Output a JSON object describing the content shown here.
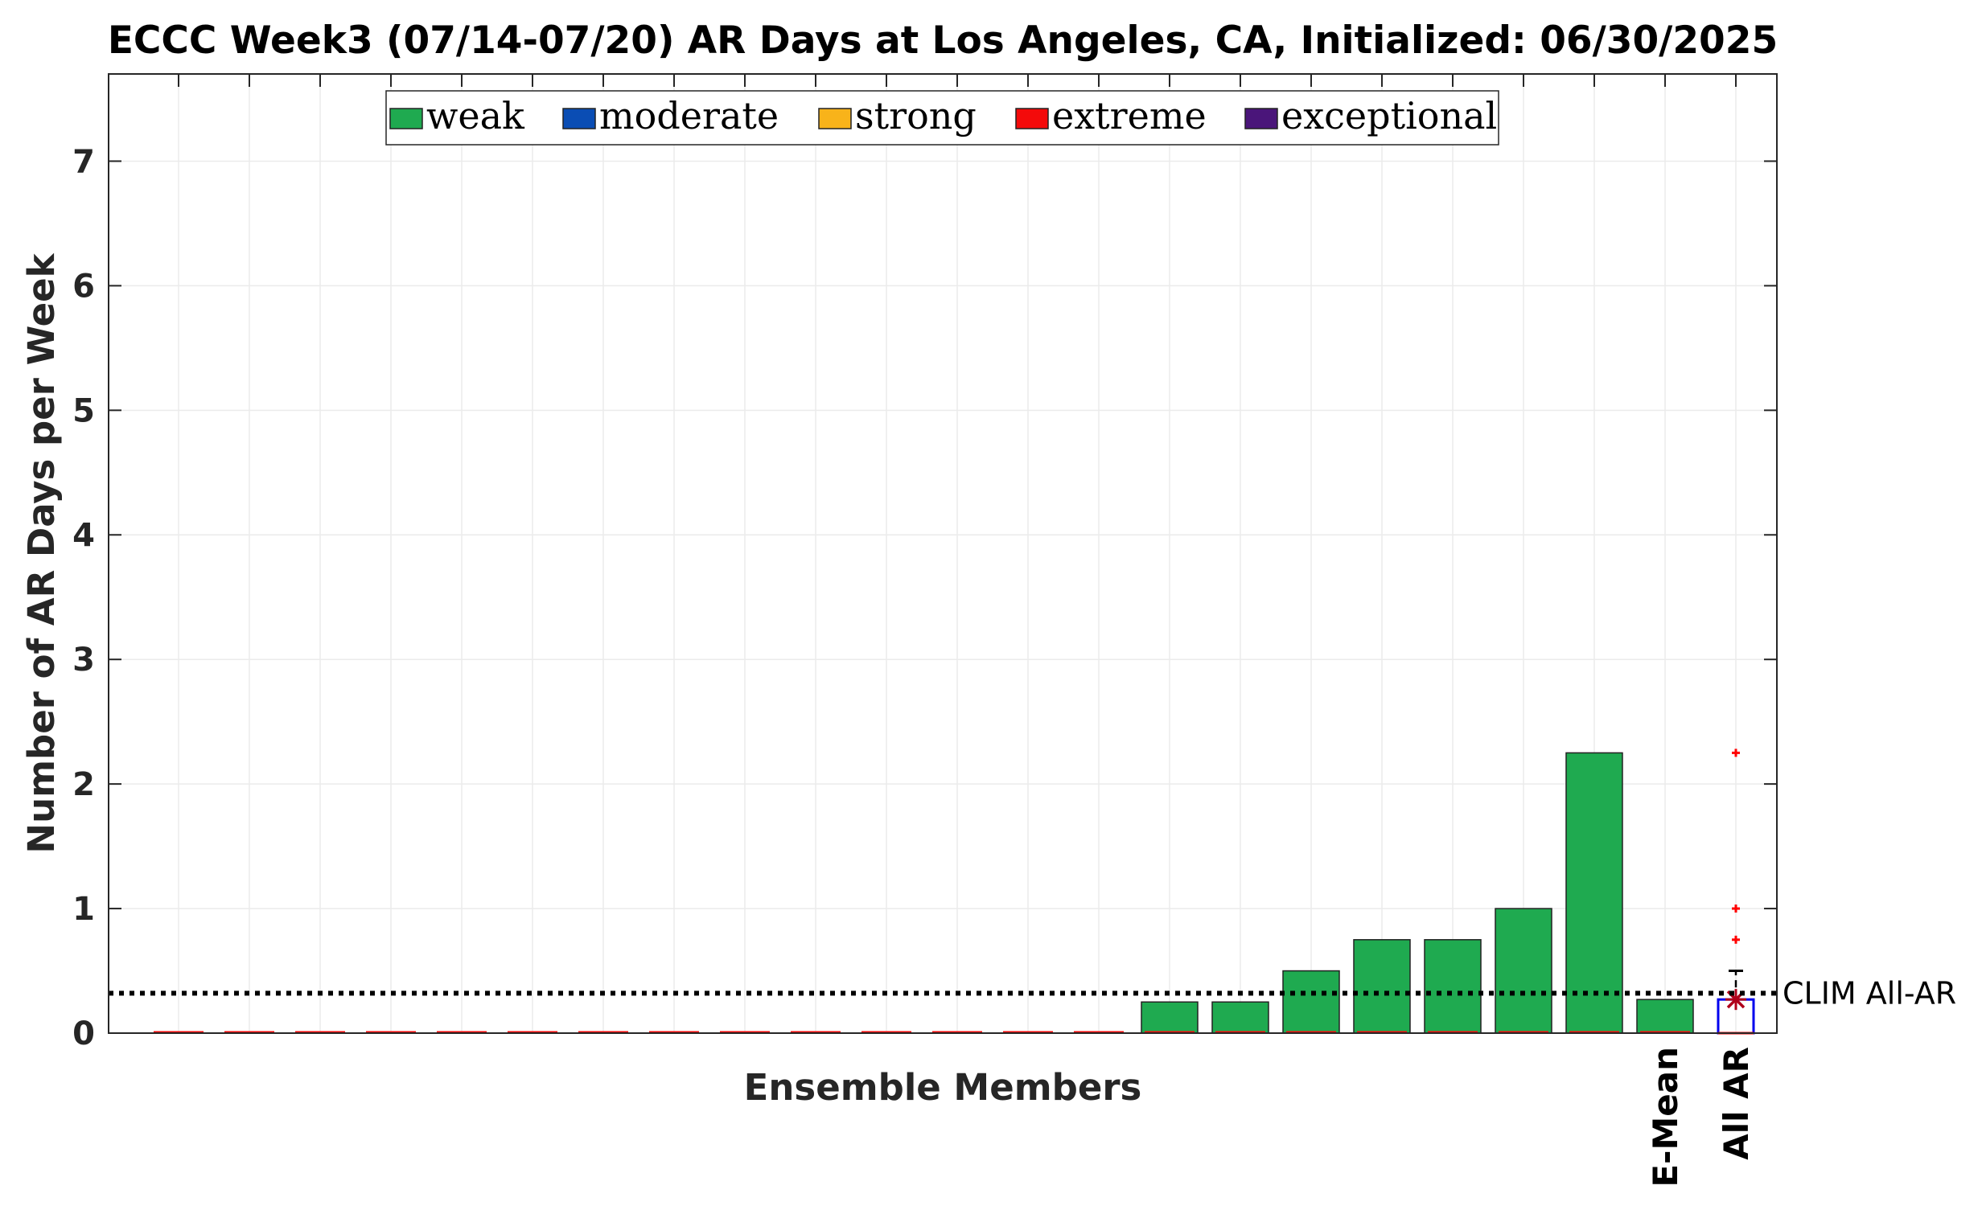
{
  "chart_data": {
    "type": "bar",
    "title": "ECCC Week3 (07/14-07/20) AR Days at Los Angeles, CA, Initialized: 06/30/2025",
    "xlabel": "Ensemble Members",
    "ylabel": "Number of AR Days per Week",
    "ylim": [
      0,
      7.7
    ],
    "yticks": [
      "0",
      "1",
      "2",
      "3",
      "4",
      "5",
      "6",
      "7"
    ],
    "grid": true,
    "legend": {
      "placement": "top-center",
      "entries": [
        {
          "name": "weak",
          "color": "#1faa50"
        },
        {
          "name": "moderate",
          "color": "#0a4db4"
        },
        {
          "name": "strong",
          "color": "#f8b31a"
        },
        {
          "name": "extreme",
          "color": "#f40a0a"
        },
        {
          "name": "exceptional",
          "color": "#4a157a"
        }
      ]
    },
    "members": {
      "count": 21,
      "series_name": "weak",
      "values": [
        0,
        0,
        0,
        0,
        0,
        0,
        0,
        0,
        0,
        0,
        0,
        0,
        0,
        0,
        0.25,
        0.25,
        0.5,
        0.75,
        0.75,
        1.0,
        2.25
      ]
    },
    "ensemble_mean": {
      "label": "E-Mean",
      "value": 0.27
    },
    "all_ar": {
      "label": "All AR",
      "box": {
        "q1": 0,
        "median": 0,
        "q3": 0.27
      },
      "mean": 0.27,
      "whisker_upper": 0.5,
      "outliers": [
        0.75,
        1.0,
        2.25
      ]
    },
    "climatology": {
      "label": "CLIM All-AR",
      "value": 0.32
    }
  }
}
